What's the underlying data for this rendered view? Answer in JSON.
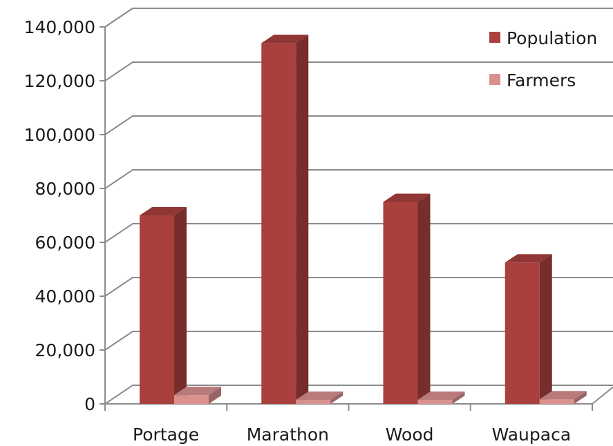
{
  "chart_data": {
    "type": "bar",
    "three_d": true,
    "categories": [
      "Portage",
      "Marathon",
      "Wood",
      "Waupaca"
    ],
    "series": [
      {
        "name": "Population",
        "values": [
          70000,
          134000,
          75000,
          52500
        ],
        "color": "#a9403e"
      },
      {
        "name": "Farmers",
        "values": [
          3300,
          1500,
          1500,
          1700
        ],
        "color": "#d9908f"
      }
    ],
    "yticks": [
      "0",
      "20,000",
      "40,000",
      "60,000",
      "80,000",
      "100,000",
      "120,000",
      "140,000"
    ],
    "ylim": [
      0,
      140000
    ],
    "grid": true,
    "legend": "top-right"
  }
}
